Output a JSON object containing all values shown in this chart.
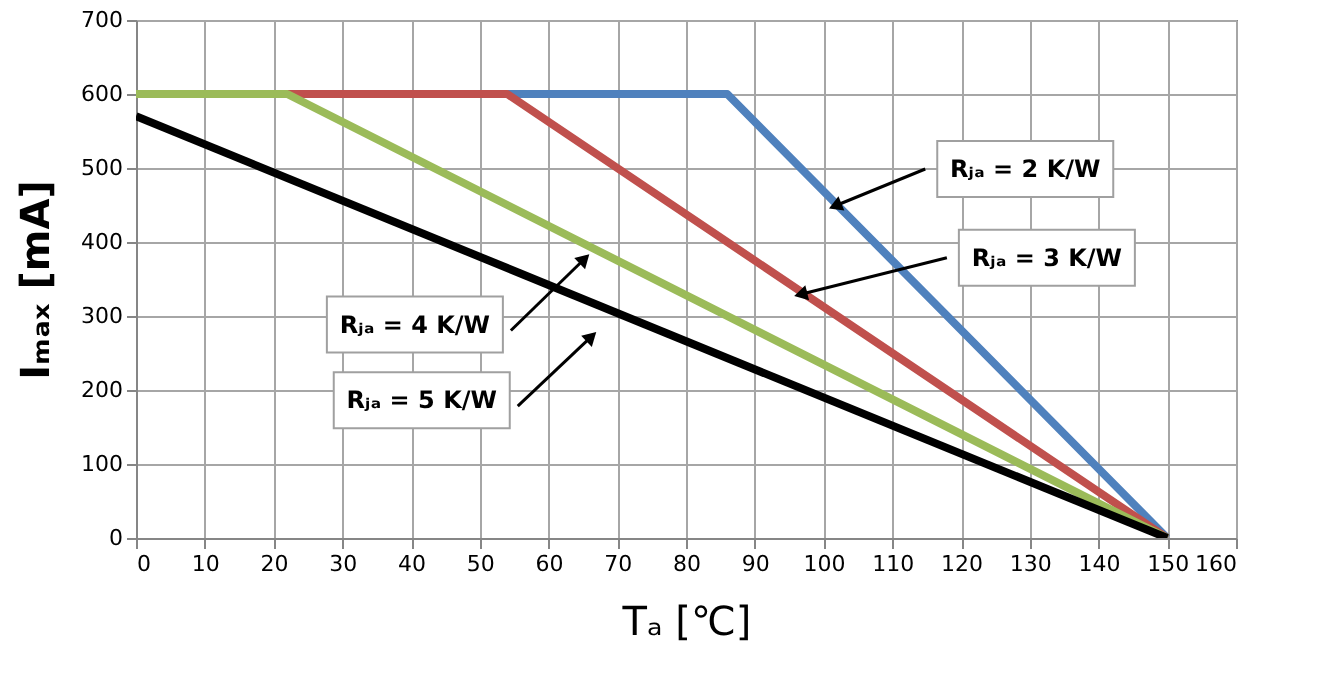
{
  "chart_data": {
    "type": "line",
    "xlabel": "Tₐ [℃]",
    "ylabel": "Iₘₐₓ [mA]",
    "xlim": [
      0,
      160
    ],
    "xticks": [
      0,
      10,
      20,
      30,
      40,
      50,
      60,
      70,
      80,
      90,
      100,
      110,
      120,
      130,
      140,
      150,
      160
    ],
    "ylim": [
      0,
      700
    ],
    "yticks": [
      0,
      100,
      200,
      300,
      400,
      500,
      600,
      700
    ],
    "grid": true,
    "line_style": "solid",
    "series": [
      {
        "color": "#4f81bd",
        "x": [
          54,
          86,
          150
        ],
        "values": [
          600,
          600,
          0
        ]
      },
      {
        "color": "#c0504d",
        "x": [
          22,
          54,
          150
        ],
        "values": [
          600,
          600,
          0
        ]
      },
      {
        "color": "#9bbb59",
        "x": [
          0,
          22,
          150
        ],
        "values": [
          600,
          600,
          0
        ]
      },
      {
        "color": "#000000",
        "x": [
          0,
          150
        ],
        "values": [
          570,
          0
        ]
      }
    ],
    "annotations": [
      {
        "text": "Rⱼₐ = 2 K/W",
        "x": 102,
        "y": 450
      },
      {
        "text": "Rⱼₐ = 3 K/W",
        "x": 97,
        "y": 330
      },
      {
        "text": "Rⱼₐ = 4 K/W",
        "x": 65,
        "y": 375
      },
      {
        "text": "Rⱼₐ = 5 K/W",
        "x": 66,
        "y": 270
      }
    ]
  }
}
